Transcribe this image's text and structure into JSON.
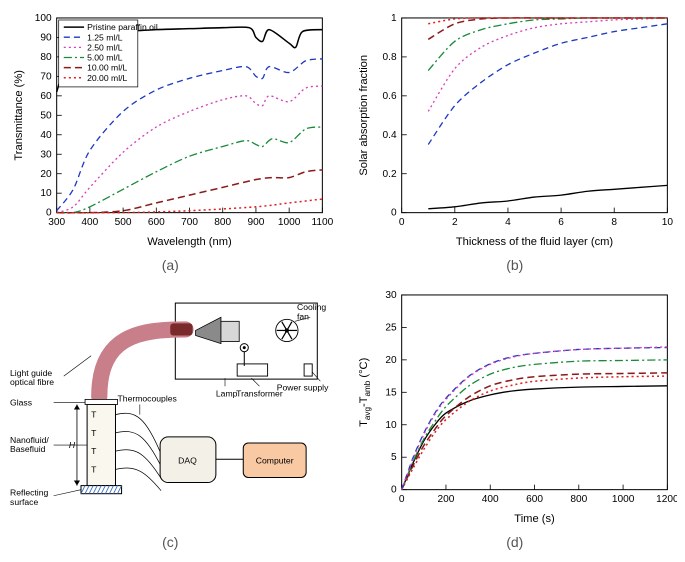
{
  "panel_labels": {
    "a": "(a)",
    "b": "(b)",
    "c": "(c)",
    "d": "(d)"
  },
  "colors": {
    "pristine": "#000000",
    "c1": "#1d39c4",
    "c2": "#d63fbd",
    "c3": "#1a8a3a",
    "c4": "#8b1a1a",
    "c5": "#e02020",
    "extra_magenta": "#d63fbd",
    "grid": "#ffffff",
    "axis": "#000000",
    "bg": "#ffffff",
    "diagram_pink": "#c97f8a",
    "diagram_pinkdark": "#7a2a2a",
    "diagram_fluid": "#faf7ee",
    "diagram_daq": "#f3f1e7",
    "diagram_computer": "#f8c9a3",
    "diagram_hatch": "#3d6fc4",
    "diagram_grey": "#d7d7d7",
    "diagram_darkgrey": "#8a8a8a"
  },
  "a_chart": {
    "type": "line",
    "xlabel": "Wavelength (nm)",
    "ylabel": "Transmittance (%)",
    "xlim": [
      300,
      1100
    ],
    "ylim": [
      0,
      100
    ],
    "xtick_step": 100,
    "ytick_step": 10,
    "legend_title": null,
    "series": [
      {
        "name": "Pristine paraffin oil",
        "color": "#000000",
        "dash": "",
        "width": 1.5,
        "x": [
          300,
          350,
          400,
          500,
          600,
          700,
          800,
          880,
          900,
          920,
          940,
          1000,
          1020,
          1040,
          1100
        ],
        "y": [
          62,
          88,
          92,
          93,
          94,
          94.5,
          95,
          95,
          90,
          88,
          94,
          87,
          85,
          93,
          94
        ]
      },
      {
        "name": "1.25 ml/L",
        "color": "#1d39c4",
        "dash": "6 4",
        "width": 1.3,
        "x": [
          300,
          350,
          400,
          500,
          600,
          700,
          800,
          870,
          900,
          920,
          940,
          1000,
          1050,
          1100
        ],
        "y": [
          1,
          12,
          32,
          52,
          63,
          69,
          73,
          75,
          70,
          69,
          75,
          72,
          78,
          79
        ]
      },
      {
        "name": "2.50 ml/L",
        "color": "#d63fbd",
        "dash": "2 3",
        "width": 1.3,
        "x": [
          300,
          350,
          400,
          500,
          600,
          700,
          800,
          870,
          900,
          920,
          940,
          1000,
          1050,
          1100
        ],
        "y": [
          0,
          3,
          13,
          31,
          44,
          52,
          58,
          60,
          56,
          55,
          60,
          57,
          64,
          65
        ]
      },
      {
        "name": "5.00 ml/L",
        "color": "#1a8a3a",
        "dash": "8 3 2 3",
        "width": 1.3,
        "x": [
          300,
          350,
          400,
          500,
          600,
          700,
          800,
          870,
          900,
          920,
          950,
          1000,
          1050,
          1100
        ],
        "y": [
          0,
          0,
          3,
          12,
          21,
          29,
          34,
          37,
          35,
          34,
          38,
          36,
          43,
          44
        ]
      },
      {
        "name": "10.00 ml/L",
        "color": "#8b1a1a",
        "dash": "7 4",
        "width": 1.5,
        "x": [
          300,
          400,
          500,
          600,
          700,
          800,
          900,
          950,
          1000,
          1050,
          1100
        ],
        "y": [
          0,
          0,
          1,
          5,
          9,
          13,
          17,
          18,
          18,
          21,
          22
        ]
      },
      {
        "name": "20.00 ml/L",
        "color": "#e02020",
        "dash": "2 3",
        "width": 1.5,
        "x": [
          300,
          500,
          700,
          900,
          1000,
          1100
        ],
        "y": [
          0,
          0,
          1,
          3,
          5,
          7
        ]
      }
    ]
  },
  "b_chart": {
    "type": "line",
    "xlabel": "Thickness of the fluid layer (cm)",
    "ylabel": "Solar absorption fraction",
    "xlim": [
      0,
      10
    ],
    "ylim": [
      0,
      1
    ],
    "xtick_step": 2,
    "ytick_step": 0.2,
    "series": [
      {
        "color": "#000000",
        "dash": "",
        "width": 1.3,
        "x": [
          1,
          2,
          3,
          4,
          5,
          6,
          7,
          8,
          9,
          10
        ],
        "y": [
          0.02,
          0.03,
          0.05,
          0.06,
          0.08,
          0.09,
          0.11,
          0.12,
          0.13,
          0.14
        ]
      },
      {
        "color": "#1d39c4",
        "dash": "6 4",
        "width": 1.3,
        "x": [
          1,
          2,
          3,
          4,
          5,
          6,
          7,
          8,
          9,
          10
        ],
        "y": [
          0.35,
          0.55,
          0.67,
          0.76,
          0.82,
          0.87,
          0.9,
          0.93,
          0.95,
          0.97
        ]
      },
      {
        "color": "#d63fbd",
        "dash": "2 3",
        "width": 1.3,
        "x": [
          1,
          2,
          3,
          4,
          5,
          6,
          7,
          8,
          9,
          10
        ],
        "y": [
          0.52,
          0.74,
          0.85,
          0.91,
          0.95,
          0.97,
          0.98,
          0.99,
          0.995,
          1.0
        ]
      },
      {
        "color": "#1a8a3a",
        "dash": "8 3 2 3",
        "width": 1.3,
        "x": [
          1,
          2,
          3,
          4,
          5,
          6,
          7,
          8,
          9,
          10
        ],
        "y": [
          0.73,
          0.88,
          0.94,
          0.97,
          0.99,
          0.995,
          1.0,
          1.0,
          1.0,
          1.0
        ]
      },
      {
        "color": "#8b1a1a",
        "dash": "7 4",
        "width": 1.5,
        "x": [
          1,
          2,
          3,
          4,
          5,
          6,
          7,
          8,
          9,
          10
        ],
        "y": [
          0.89,
          0.97,
          0.995,
          1.0,
          1.0,
          1.0,
          1.0,
          1.0,
          1.0,
          1.0
        ]
      },
      {
        "color": "#e02020",
        "dash": "2 3",
        "width": 1.5,
        "x": [
          1,
          2,
          3,
          4,
          5,
          6,
          7,
          8,
          9,
          10
        ],
        "y": [
          0.97,
          0.995,
          1.0,
          1.0,
          1.0,
          1.0,
          1.0,
          1.0,
          1.0,
          1.0
        ]
      }
    ]
  },
  "d_chart": {
    "type": "line",
    "xlabel": "Time (s)",
    "ylabel": "T_avg - T_amb (°C)",
    "ylabel_plain_pre": "T",
    "ylabel_plain_sub1": "avg",
    "ylabel_plain_mid": "-T",
    "ylabel_plain_sub2": "amb",
    "ylabel_plain_post": " (°C)",
    "xlim": [
      0,
      1200
    ],
    "ylim": [
      0,
      30
    ],
    "xtick_step": 200,
    "ytick_step": 5,
    "series": [
      {
        "color": "#000000",
        "dash": "",
        "width": 1.3,
        "x": [
          0,
          50,
          100,
          150,
          200,
          300,
          400,
          500,
          600,
          800,
          1000,
          1200
        ],
        "y": [
          0,
          4,
          7.5,
          10,
          11.8,
          13.6,
          14.6,
          15.2,
          15.5,
          15.8,
          15.9,
          16
        ]
      },
      {
        "color": "#e02020",
        "dash": "2 3",
        "width": 1.5,
        "x": [
          0,
          50,
          100,
          150,
          200,
          300,
          400,
          500,
          600,
          800,
          1000,
          1200
        ],
        "y": [
          0,
          3.2,
          6.2,
          8.8,
          10.8,
          13.5,
          15.2,
          16.1,
          16.7,
          17.2,
          17.4,
          17.5
        ]
      },
      {
        "color": "#8b1a1a",
        "dash": "7 4",
        "width": 1.5,
        "x": [
          0,
          50,
          100,
          150,
          200,
          300,
          400,
          500,
          600,
          800,
          1000,
          1200
        ],
        "y": [
          0,
          3.6,
          6.8,
          9.3,
          11.4,
          14.2,
          16,
          16.9,
          17.4,
          17.8,
          17.9,
          18
        ]
      },
      {
        "color": "#1a8a3a",
        "dash": "8 3 2 3",
        "width": 1.3,
        "x": [
          0,
          50,
          100,
          150,
          200,
          300,
          400,
          500,
          600,
          800,
          1000,
          1200
        ],
        "y": [
          0,
          4.2,
          7.8,
          10.5,
          12.8,
          15.9,
          17.8,
          18.8,
          19.3,
          19.8,
          19.9,
          20
        ]
      },
      {
        "color": "#1d39c4",
        "dash": "6 4",
        "width": 1.3,
        "x": [
          0,
          50,
          100,
          150,
          200,
          300,
          400,
          500,
          600,
          800,
          1000,
          1200
        ],
        "y": [
          0,
          4.8,
          8.7,
          11.8,
          14.1,
          17.4,
          19.4,
          20.5,
          21,
          21.6,
          21.8,
          21.9
        ]
      },
      {
        "color": "#d63fbd",
        "dash": "2 3",
        "width": 1.3,
        "x": [
          0,
          50,
          100,
          150,
          200,
          300,
          400,
          500,
          600,
          800,
          1000,
          1200
        ],
        "y": [
          0,
          4.6,
          8.5,
          11.6,
          13.9,
          17.3,
          19.3,
          20.4,
          21,
          21.6,
          21.8,
          22
        ]
      }
    ]
  },
  "c_diagram": {
    "labels": {
      "light_guide": "Light guide\noptical fibre",
      "glass": "Glass",
      "fluid": "Nanofluid/\nBasefluid",
      "reflecting": "Reflecting\nsurface",
      "thermocouples": "Thermocouples",
      "lamp": "Lamp",
      "transformer": "Transformer",
      "cooling_fan": "Cooling\nfan",
      "power_supply": "Power supply",
      "daq": "DAQ",
      "computer": "Computer",
      "H": "H"
    },
    "thermo_symbols": [
      "T₁",
      "T₂",
      "T₃",
      "T₄"
    ]
  }
}
